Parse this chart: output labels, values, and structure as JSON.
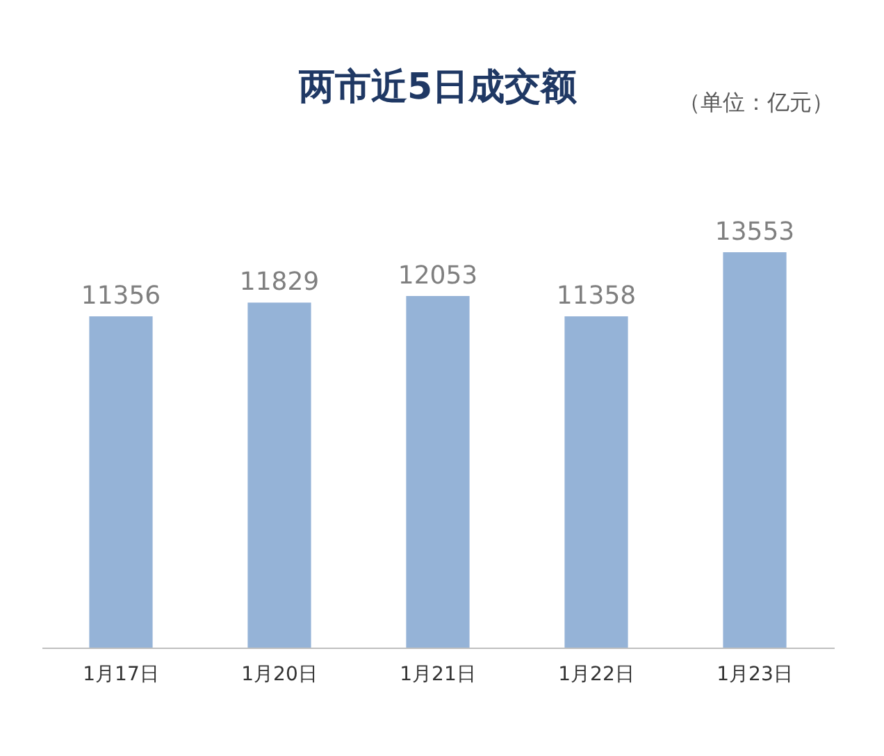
{
  "chart_data": {
    "type": "bar",
    "title": "两市近5日成交额",
    "annotations": [
      "（单位：亿元）"
    ],
    "categories": [
      "1月17日",
      "1月20日",
      "1月21日",
      "1月22日",
      "1月23日"
    ],
    "values": [
      11356,
      11829,
      12053,
      11358,
      13553
    ],
    "color": "#95b3d7",
    "data_labels": true,
    "grid": false
  }
}
